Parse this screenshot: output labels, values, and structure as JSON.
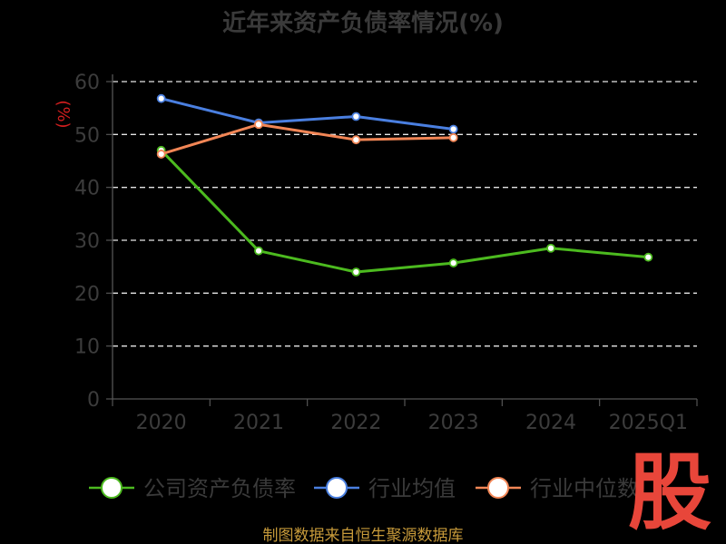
{
  "chart_data": {
    "type": "line",
    "title": "近年来资产负债率情况(%)",
    "ylabel": "(%)",
    "xlabel": "",
    "ylim": [
      0,
      60
    ],
    "yticks": [
      0,
      10,
      20,
      30,
      40,
      50,
      60
    ],
    "categories": [
      "2020",
      "2021",
      "2022",
      "2023",
      "2024",
      "2025Q1"
    ],
    "grid": true,
    "legend": "bottom",
    "series": [
      {
        "name": "公司资产负债率",
        "color": "#4cba1f",
        "values": [
          47.0,
          28.0,
          24.0,
          25.7,
          28.5,
          26.8
        ]
      },
      {
        "name": "行业均值",
        "color": "#4a7fe0",
        "values": [
          56.8,
          52.2,
          53.4,
          51.0,
          null,
          null
        ]
      },
      {
        "name": "行业中位数",
        "color": "#f28656",
        "values": [
          46.3,
          51.9,
          49.0,
          49.4,
          null,
          null
        ]
      }
    ]
  },
  "footer": {
    "source": "制图数据来自恒生聚源数据库"
  },
  "watermark": {
    "text": "股"
  }
}
